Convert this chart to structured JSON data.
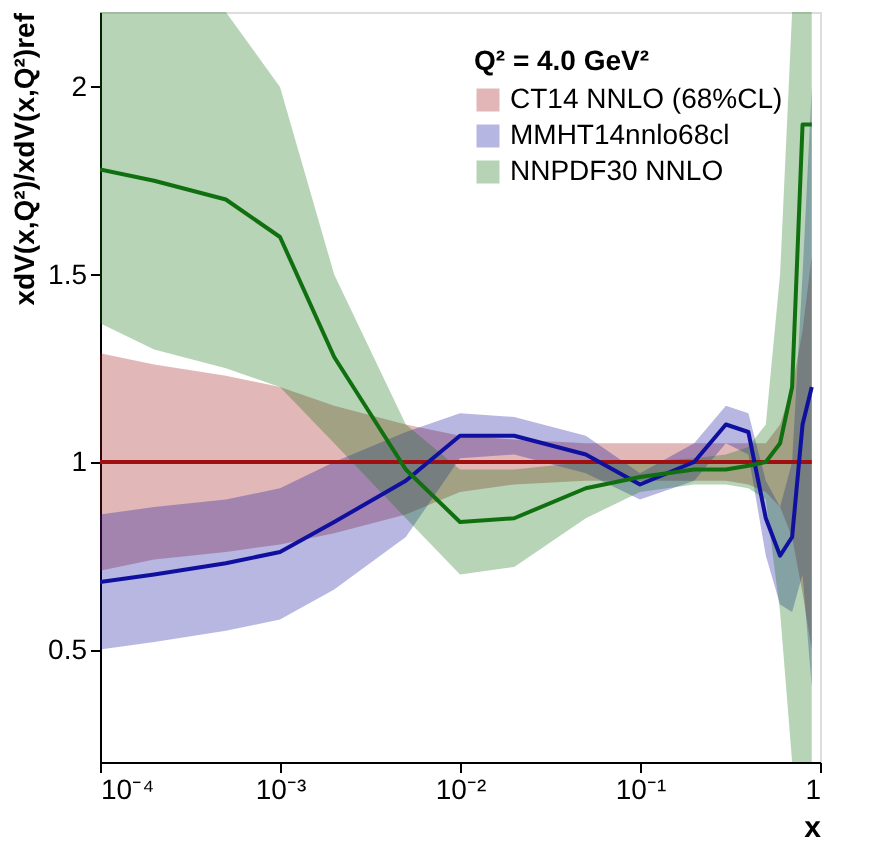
{
  "chart_data": {
    "type": "line",
    "xlabel": "x",
    "ylabel": "xdV(x,Q²)/xdV(x,Q²)ref",
    "legend_title": "Q² = 4.0 GeV²",
    "log": "x",
    "xlim": [
      0.0001,
      1
    ],
    "ylim": [
      0.2,
      2.2
    ],
    "xticks": [
      {
        "value": 0.0001,
        "label": "10⁻⁴"
      },
      {
        "value": 0.001,
        "label": "10⁻³"
      },
      {
        "value": 0.01,
        "label": "10⁻²"
      },
      {
        "value": 0.1,
        "label": "10⁻¹"
      },
      1
    ],
    "yticks": [
      0.5,
      1,
      1.5,
      2
    ],
    "x": [
      0.0001,
      0.0002,
      0.0005,
      0.001,
      0.002,
      0.005,
      0.01,
      0.02,
      0.05,
      0.1,
      0.2,
      0.3,
      0.4,
      0.5,
      0.6,
      0.7,
      0.8,
      0.9
    ],
    "grid": false,
    "legend": "top right",
    "marker": "none",
    "line_style": "solid",
    "series": [
      {
        "name": "CT14 NNLO (68%CL)",
        "color": "#a01010",
        "values": [
          1,
          1,
          1,
          1,
          1,
          1,
          1,
          1,
          1,
          1,
          1,
          1,
          1,
          1,
          1,
          1,
          1,
          1
        ],
        "lower": [
          0.71,
          0.74,
          0.76,
          0.78,
          0.81,
          0.86,
          0.92,
          0.94,
          0.95,
          0.95,
          0.95,
          0.95,
          0.94,
          0.92,
          0.88,
          0.8,
          0.65,
          0.5
        ],
        "upper": [
          1.29,
          1.26,
          1.23,
          1.2,
          1.15,
          1.1,
          1.07,
          1.06,
          1.05,
          1.05,
          1.05,
          1.05,
          1.05,
          1.05,
          1.1,
          1.2,
          1.35,
          1.55
        ]
      },
      {
        "name": "MMHT14nnlo68cl",
        "color": "#1010a0",
        "values": [
          0.68,
          0.7,
          0.73,
          0.76,
          0.84,
          0.95,
          1.07,
          1.07,
          1.02,
          0.94,
          1.0,
          1.1,
          1.08,
          0.85,
          0.75,
          0.8,
          1.1,
          1.2
        ],
        "lower": [
          0.5,
          0.52,
          0.55,
          0.58,
          0.66,
          0.8,
          1.01,
          1.02,
          0.97,
          0.9,
          0.95,
          1.05,
          1.02,
          0.75,
          0.62,
          0.6,
          0.7,
          0.4
        ],
        "upper": [
          0.86,
          0.88,
          0.9,
          0.93,
          1.0,
          1.08,
          1.13,
          1.12,
          1.07,
          0.97,
          1.05,
          1.15,
          1.13,
          0.95,
          0.88,
          1.0,
          1.5,
          2.0
        ]
      },
      {
        "name": "NNPDF30 NNLO",
        "color": "#107010",
        "values": [
          1.78,
          1.75,
          1.7,
          1.6,
          1.28,
          0.98,
          0.84,
          0.85,
          0.93,
          0.96,
          0.98,
          0.98,
          0.99,
          1.0,
          1.05,
          1.2,
          1.9,
          1.9
        ],
        "lower": [
          1.37,
          1.3,
          1.25,
          1.2,
          1.05,
          0.85,
          0.7,
          0.72,
          0.85,
          0.92,
          0.94,
          0.94,
          0.93,
          0.9,
          0.6,
          0.2,
          0.2,
          0.2
        ],
        "upper": [
          2.2,
          2.2,
          2.2,
          2.0,
          1.5,
          1.1,
          0.98,
          0.98,
          1.0,
          1.0,
          1.01,
          1.02,
          1.04,
          1.1,
          1.5,
          2.2,
          2.2,
          2.2
        ]
      }
    ]
  }
}
